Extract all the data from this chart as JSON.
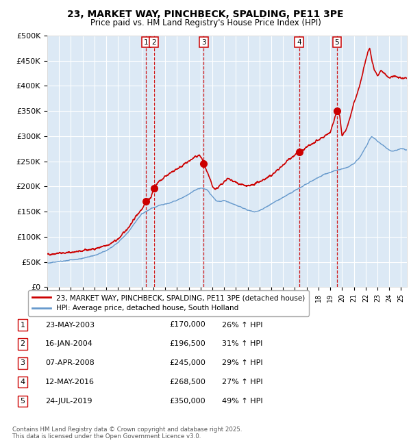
{
  "title": "23, MARKET WAY, PINCHBECK, SPALDING, PE11 3PE",
  "subtitle": "Price paid vs. HM Land Registry's House Price Index (HPI)",
  "background_color": "#dce9f5",
  "grid_color": "#ffffff",
  "ylim": [
    0,
    500000
  ],
  "yticks": [
    0,
    50000,
    100000,
    150000,
    200000,
    250000,
    300000,
    350000,
    400000,
    450000,
    500000
  ],
  "sale_label_dates": [
    2003.39,
    2004.04,
    2008.27,
    2016.36,
    2019.56
  ],
  "sale_prices": [
    170000,
    196500,
    245000,
    268500,
    350000
  ],
  "sale_labels": [
    "1",
    "2",
    "3",
    "4",
    "5"
  ],
  "vline_color": "#cc0000",
  "sale_marker_color": "#cc0000",
  "property_line_color": "#cc0000",
  "hpi_line_color": "#6699cc",
  "legend_label_property": "23, MARKET WAY, PINCHBECK, SPALDING, PE11 3PE (detached house)",
  "legend_label_hpi": "HPI: Average price, detached house, South Holland",
  "table_rows": [
    [
      "1",
      "23-MAY-2003",
      "£170,000",
      "26% ↑ HPI"
    ],
    [
      "2",
      "16-JAN-2004",
      "£196,500",
      "31% ↑ HPI"
    ],
    [
      "3",
      "07-APR-2008",
      "£245,000",
      "29% ↑ HPI"
    ],
    [
      "4",
      "12-MAY-2016",
      "£268,500",
      "27% ↑ HPI"
    ],
    [
      "5",
      "24-JUL-2019",
      "£350,000",
      "49% ↑ HPI"
    ]
  ],
  "footnote": "Contains HM Land Registry data © Crown copyright and database right 2025.\nThis data is licensed under the Open Government Licence v3.0.",
  "xmin": 1995.0,
  "xmax": 2025.5,
  "property_points": [
    [
      1995.0,
      65000
    ],
    [
      1995.5,
      66000
    ],
    [
      1996.0,
      67500
    ],
    [
      1996.5,
      68000
    ],
    [
      1997.0,
      69000
    ],
    [
      1997.5,
      70000
    ],
    [
      1998.0,
      72000
    ],
    [
      1998.5,
      74000
    ],
    [
      1999.0,
      76000
    ],
    [
      1999.5,
      79000
    ],
    [
      2000.0,
      82000
    ],
    [
      2000.5,
      88000
    ],
    [
      2001.0,
      95000
    ],
    [
      2001.5,
      108000
    ],
    [
      2002.0,
      122000
    ],
    [
      2002.5,
      140000
    ],
    [
      2003.0,
      155000
    ],
    [
      2003.39,
      170000
    ],
    [
      2003.6,
      175000
    ],
    [
      2003.8,
      178000
    ],
    [
      2004.04,
      196500
    ],
    [
      2004.3,
      205000
    ],
    [
      2004.6,
      212000
    ],
    [
      2005.0,
      220000
    ],
    [
      2005.5,
      228000
    ],
    [
      2006.0,
      235000
    ],
    [
      2006.5,
      242000
    ],
    [
      2007.0,
      250000
    ],
    [
      2007.5,
      258000
    ],
    [
      2007.9,
      262000
    ],
    [
      2008.1,
      256000
    ],
    [
      2008.27,
      245000
    ],
    [
      2008.5,
      230000
    ],
    [
      2008.8,
      215000
    ],
    [
      2009.0,
      200000
    ],
    [
      2009.2,
      195000
    ],
    [
      2009.5,
      198000
    ],
    [
      2009.8,
      205000
    ],
    [
      2010.0,
      210000
    ],
    [
      2010.3,
      215000
    ],
    [
      2010.6,
      212000
    ],
    [
      2011.0,
      208000
    ],
    [
      2011.3,
      205000
    ],
    [
      2011.6,
      203000
    ],
    [
      2012.0,
      200000
    ],
    [
      2012.3,
      202000
    ],
    [
      2012.6,
      205000
    ],
    [
      2013.0,
      210000
    ],
    [
      2013.5,
      215000
    ],
    [
      2014.0,
      222000
    ],
    [
      2014.5,
      232000
    ],
    [
      2015.0,
      242000
    ],
    [
      2015.5,
      255000
    ],
    [
      2016.0,
      262000
    ],
    [
      2016.36,
      268500
    ],
    [
      2016.7,
      272000
    ],
    [
      2017.0,
      278000
    ],
    [
      2017.5,
      285000
    ],
    [
      2018.0,
      292000
    ],
    [
      2018.5,
      300000
    ],
    [
      2019.0,
      308000
    ],
    [
      2019.56,
      350000
    ],
    [
      2019.8,
      340000
    ],
    [
      2020.0,
      300000
    ],
    [
      2020.3,
      310000
    ],
    [
      2020.6,
      330000
    ],
    [
      2021.0,
      365000
    ],
    [
      2021.3,
      385000
    ],
    [
      2021.6,
      410000
    ],
    [
      2022.0,
      450000
    ],
    [
      2022.2,
      470000
    ],
    [
      2022.35,
      475000
    ],
    [
      2022.5,
      455000
    ],
    [
      2022.7,
      435000
    ],
    [
      2023.0,
      420000
    ],
    [
      2023.3,
      430000
    ],
    [
      2023.6,
      425000
    ],
    [
      2024.0,
      415000
    ],
    [
      2024.3,
      420000
    ],
    [
      2024.6,
      418000
    ],
    [
      2025.0,
      415000
    ],
    [
      2025.5,
      415000
    ]
  ],
  "hpi_points": [
    [
      1995.0,
      48000
    ],
    [
      1995.5,
      49000
    ],
    [
      1996.0,
      51000
    ],
    [
      1996.5,
      52000
    ],
    [
      1997.0,
      54000
    ],
    [
      1997.5,
      55000
    ],
    [
      1998.0,
      57000
    ],
    [
      1998.5,
      60000
    ],
    [
      1999.0,
      63000
    ],
    [
      1999.5,
      67000
    ],
    [
      2000.0,
      72000
    ],
    [
      2000.5,
      80000
    ],
    [
      2001.0,
      89000
    ],
    [
      2001.5,
      100000
    ],
    [
      2002.0,
      113000
    ],
    [
      2002.5,
      130000
    ],
    [
      2003.0,
      145000
    ],
    [
      2003.5,
      152000
    ],
    [
      2004.0,
      158000
    ],
    [
      2004.5,
      162000
    ],
    [
      2005.0,
      165000
    ],
    [
      2005.5,
      168000
    ],
    [
      2006.0,
      172000
    ],
    [
      2006.5,
      178000
    ],
    [
      2007.0,
      185000
    ],
    [
      2007.5,
      192000
    ],
    [
      2008.0,
      197000
    ],
    [
      2008.5,
      195000
    ],
    [
      2009.0,
      180000
    ],
    [
      2009.3,
      172000
    ],
    [
      2009.6,
      170000
    ],
    [
      2010.0,
      172000
    ],
    [
      2010.5,
      168000
    ],
    [
      2011.0,
      163000
    ],
    [
      2011.5,
      158000
    ],
    [
      2012.0,
      153000
    ],
    [
      2012.5,
      150000
    ],
    [
      2013.0,
      152000
    ],
    [
      2013.5,
      158000
    ],
    [
      2014.0,
      165000
    ],
    [
      2014.5,
      172000
    ],
    [
      2015.0,
      178000
    ],
    [
      2015.5,
      185000
    ],
    [
      2016.0,
      192000
    ],
    [
      2016.5,
      198000
    ],
    [
      2017.0,
      205000
    ],
    [
      2017.5,
      212000
    ],
    [
      2018.0,
      218000
    ],
    [
      2018.5,
      224000
    ],
    [
      2019.0,
      228000
    ],
    [
      2019.5,
      232000
    ],
    [
      2020.0,
      235000
    ],
    [
      2020.5,
      238000
    ],
    [
      2021.0,
      245000
    ],
    [
      2021.5,
      258000
    ],
    [
      2022.0,
      278000
    ],
    [
      2022.3,
      292000
    ],
    [
      2022.5,
      300000
    ],
    [
      2022.8,
      295000
    ],
    [
      2023.0,
      290000
    ],
    [
      2023.3,
      285000
    ],
    [
      2023.6,
      280000
    ],
    [
      2024.0,
      272000
    ],
    [
      2024.3,
      270000
    ],
    [
      2024.6,
      272000
    ],
    [
      2025.0,
      275000
    ],
    [
      2025.5,
      273000
    ]
  ]
}
